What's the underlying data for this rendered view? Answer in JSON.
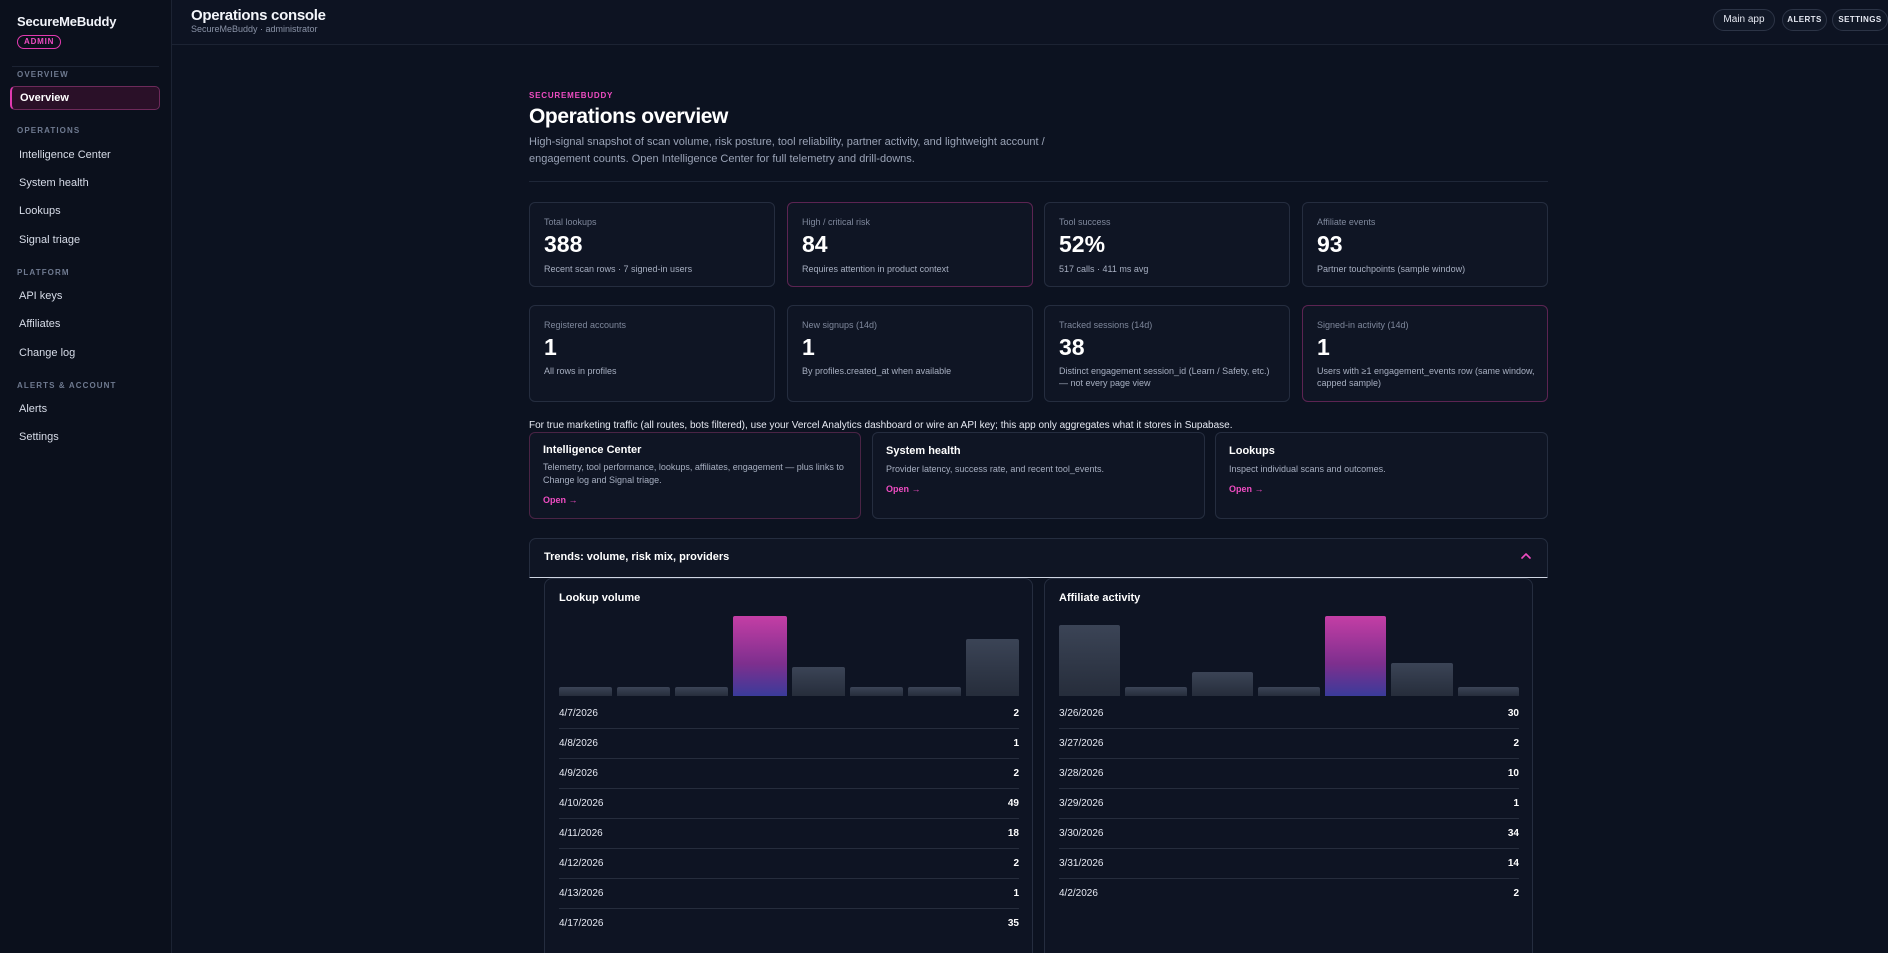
{
  "sidebar": {
    "brand": "SecureMeBuddy",
    "badge": "ADMIN",
    "sections": [
      {
        "title": "OVERVIEW",
        "items": [
          "Overview"
        ]
      },
      {
        "title": "OPERATIONS",
        "items": [
          "Intelligence Center",
          "System health",
          "Lookups",
          "Signal triage"
        ]
      },
      {
        "title": "PLATFORM",
        "items": [
          "API keys",
          "Affiliates",
          "Change log"
        ]
      },
      {
        "title": "ALERTS & ACCOUNT",
        "items": [
          "Alerts",
          "Settings"
        ]
      }
    ]
  },
  "header": {
    "title": "Operations console",
    "subtitle": "SecureMeBuddy · administrator",
    "main_app": "Main app",
    "alerts": "ALERTS",
    "settings": "SETTINGS"
  },
  "page": {
    "eyebrow": "SECUREMEBUDDY",
    "title": "Operations overview",
    "description": "High-signal snapshot of scan volume, risk posture, tool reliability, partner activity, and lightweight account / engagement counts. Open Intelligence Center for full telemetry and drill-downs."
  },
  "stats": [
    {
      "label": "Total lookups",
      "value": "388",
      "note": "Recent scan rows · 7 signed-in users"
    },
    {
      "label": "High / critical risk",
      "value": "84",
      "note": "Requires attention in product context"
    },
    {
      "label": "Tool success",
      "value": "52%",
      "note": "517 calls · 411 ms avg"
    },
    {
      "label": "Affiliate events",
      "value": "93",
      "note": "Partner touchpoints (sample window)"
    },
    {
      "label": "Registered accounts",
      "value": "1",
      "note": "All rows in profiles"
    },
    {
      "label": "New signups (14d)",
      "value": "1",
      "note": "By profiles.created_at when available"
    },
    {
      "label": "Tracked sessions (14d)",
      "value": "38",
      "note": "Distinct engagement session_id (Learn / Safety, etc.) — not every page view"
    },
    {
      "label": "Signed-in activity (14d)",
      "value": "1",
      "note": "Users with ≥1 engagement_events row (same window, capped sample)"
    }
  ],
  "info_line": "For true marketing traffic (all routes, bots filtered), use your Vercel Analytics dashboard or wire an API key; this app only aggregates what it stores in Supabase.",
  "quick_links": [
    {
      "title": "Intelligence Center",
      "description": "Telemetry, tool performance, lookups, affiliates, engagement — plus links to Change log and Signal triage.",
      "open": "Open →"
    },
    {
      "title": "System health",
      "description": "Provider latency, success rate, and recent tool_events.",
      "open": "Open →"
    },
    {
      "title": "Lookups",
      "description": "Inspect individual scans and outcomes.",
      "open": "Open →"
    }
  ],
  "trends": {
    "title": "Trends: volume, risk mix, providers",
    "toggle_icon": "chevron-up-icon"
  },
  "chart_data": [
    {
      "type": "bar",
      "title": "Lookup volume",
      "categories": [
        "4/7/2026",
        "4/8/2026",
        "4/9/2026",
        "4/10/2026",
        "4/11/2026",
        "4/12/2026",
        "4/13/2026",
        "4/17/2026"
      ],
      "values": [
        2,
        1,
        2,
        49,
        18,
        2,
        1,
        35
      ]
    },
    {
      "type": "bar",
      "title": "Affiliate activity",
      "categories": [
        "3/26/2026",
        "3/27/2026",
        "3/28/2026",
        "3/29/2026",
        "3/30/2026",
        "3/31/2026",
        "4/2/2026"
      ],
      "values": [
        30,
        2,
        10,
        1,
        34,
        14,
        2
      ]
    }
  ],
  "colors": {
    "accent": "#e23ab0",
    "background": "#0c1220",
    "card": "#0f1524"
  }
}
